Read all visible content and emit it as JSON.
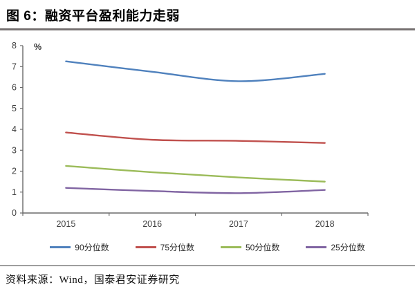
{
  "header": {
    "title": "图 6：融资平台盈利能力走弱"
  },
  "source": {
    "text": "资料来源：Wind，国泰君安证券研究"
  },
  "colors": {
    "axis": "#6a6a6a",
    "tick_label": "#404040",
    "title_rule": "#757070",
    "bottom_rule": "#9e9e9e"
  },
  "chart_data": {
    "type": "line",
    "smooth": true,
    "grid": false,
    "legend_position": "bottom",
    "title": "",
    "xlabel": "",
    "ylabel": "%",
    "ylim": [
      0,
      8
    ],
    "ytick_step": 1,
    "categories": [
      "2015",
      "2016",
      "2017",
      "2018"
    ],
    "series": [
      {
        "name": "90分位数",
        "color": "#4F81BD",
        "values": [
          7.25,
          6.75,
          6.3,
          6.65
        ]
      },
      {
        "name": "75分位数",
        "color": "#C0504D",
        "values": [
          3.85,
          3.5,
          3.45,
          3.35
        ]
      },
      {
        "name": "50分位数",
        "color": "#9BBB59",
        "values": [
          2.25,
          1.95,
          1.7,
          1.5
        ]
      },
      {
        "name": "25分位数",
        "color": "#8064A2",
        "values": [
          1.2,
          1.05,
          0.95,
          1.1
        ]
      }
    ]
  }
}
